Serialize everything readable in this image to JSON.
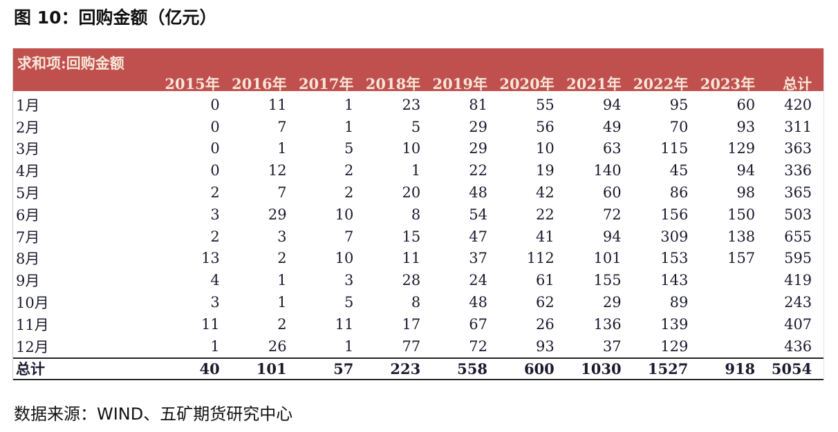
{
  "title": "图 10：回购金额（亿元）",
  "table": {
    "caption": "求和项:回购金额",
    "columns": [
      "2015年",
      "2016年",
      "2017年",
      "2018年",
      "2019年",
      "2020年",
      "2021年",
      "2022年",
      "2023年",
      "总计"
    ],
    "rows": [
      {
        "label": "1月",
        "values": [
          "0",
          "11",
          "1",
          "23",
          "81",
          "55",
          "94",
          "95",
          "60",
          "420"
        ]
      },
      {
        "label": "2月",
        "values": [
          "0",
          "7",
          "1",
          "5",
          "29",
          "56",
          "49",
          "70",
          "93",
          "311"
        ]
      },
      {
        "label": "3月",
        "values": [
          "0",
          "1",
          "5",
          "10",
          "29",
          "10",
          "63",
          "115",
          "129",
          "363"
        ]
      },
      {
        "label": "4月",
        "values": [
          "0",
          "12",
          "2",
          "1",
          "22",
          "19",
          "140",
          "45",
          "94",
          "336"
        ]
      },
      {
        "label": "5月",
        "values": [
          "2",
          "7",
          "2",
          "20",
          "48",
          "42",
          "60",
          "86",
          "98",
          "365"
        ]
      },
      {
        "label": "6月",
        "values": [
          "3",
          "29",
          "10",
          "8",
          "54",
          "22",
          "72",
          "156",
          "150",
          "503"
        ]
      },
      {
        "label": "7月",
        "values": [
          "2",
          "3",
          "7",
          "15",
          "47",
          "41",
          "94",
          "309",
          "138",
          "655"
        ]
      },
      {
        "label": "8月",
        "values": [
          "13",
          "2",
          "10",
          "11",
          "37",
          "112",
          "101",
          "153",
          "157",
          "595"
        ]
      },
      {
        "label": "9月",
        "values": [
          "4",
          "1",
          "3",
          "28",
          "24",
          "61",
          "155",
          "143",
          "",
          "419"
        ]
      },
      {
        "label": "10月",
        "values": [
          "3",
          "1",
          "5",
          "8",
          "48",
          "62",
          "29",
          "89",
          "",
          "243"
        ]
      },
      {
        "label": "11月",
        "values": [
          "11",
          "2",
          "11",
          "17",
          "67",
          "26",
          "136",
          "139",
          "",
          "407"
        ]
      },
      {
        "label": "12月",
        "values": [
          "1",
          "26",
          "1",
          "77",
          "72",
          "93",
          "37",
          "129",
          "",
          "436"
        ]
      }
    ],
    "total": {
      "label": "总计",
      "values": [
        "40",
        "101",
        "57",
        "223",
        "558",
        "600",
        "1030",
        "1527",
        "918",
        "5054"
      ]
    }
  },
  "source": "数据来源：WIND、五矿期货研究中心",
  "colors": {
    "header_bg": "#c0504d",
    "header_text": "#f6e7da"
  }
}
